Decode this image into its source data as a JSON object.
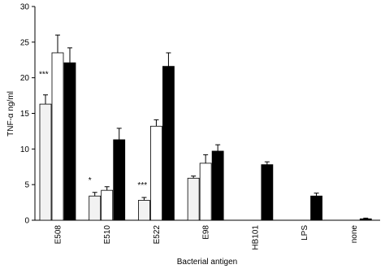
{
  "chart_data": {
    "type": "bar",
    "ylabel": "TNF-α ng/ml",
    "xlabel": "Bacterial antigen",
    "categories": [
      "E508",
      "E510",
      "E522",
      "E98",
      "HB101",
      "LPS",
      "none"
    ],
    "series": [
      {
        "color": "#f2f2f2",
        "values": [
          16.3,
          3.4,
          2.8,
          5.9,
          null,
          null,
          null
        ],
        "errors": [
          1.3,
          0.5,
          0.4,
          0.3,
          null,
          null,
          null
        ]
      },
      {
        "color": "#ffffff",
        "values": [
          23.5,
          4.2,
          13.2,
          8.0,
          null,
          null,
          null
        ],
        "errors": [
          2.5,
          0.5,
          0.9,
          1.2,
          null,
          null,
          null
        ]
      },
      {
        "color": "#000000",
        "values": [
          22.1,
          11.3,
          21.6,
          9.7,
          7.8,
          3.4,
          0.2
        ],
        "errors": [
          2.1,
          1.6,
          1.9,
          0.9,
          0.4,
          0.4,
          0.1
        ]
      }
    ],
    "annotations": [
      "***",
      "*",
      "***"
    ],
    "ylim": [
      0,
      30
    ],
    "yticks": [
      0,
      5,
      10,
      15,
      20,
      25,
      30
    ],
    "grid": false
  }
}
